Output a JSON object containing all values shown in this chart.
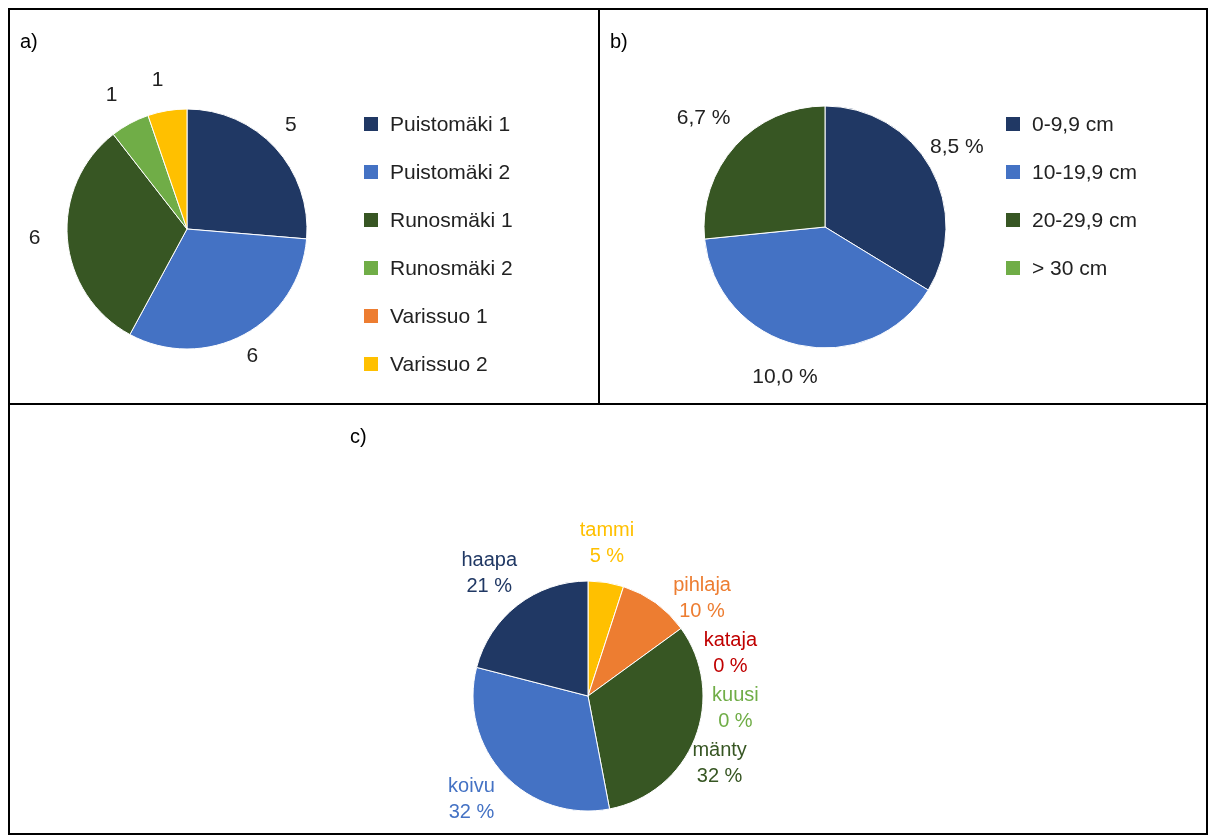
{
  "chart_data": [
    {
      "type": "pie",
      "title": "a)",
      "categories": [
        "Puistomäki 1",
        "Puistomäki 2",
        "Runosmäki 1",
        "Runosmäki 2",
        "Varissuo 1",
        "Varissuo 2"
      ],
      "values": [
        5,
        6,
        6,
        1,
        0,
        1
      ],
      "value_labels": [
        "5",
        "6",
        "6",
        "1",
        null,
        "1"
      ],
      "colors": [
        "#203864",
        "#4472c4",
        "#375623",
        "#70ad47",
        "#ed7d31",
        "#ffc000"
      ],
      "legend": "right"
    },
    {
      "type": "pie",
      "title": "b)",
      "categories": [
        "0-9,9 cm",
        "10-19,9 cm",
        "20-29,9 cm",
        "> 30 cm"
      ],
      "values": [
        8.5,
        10.0,
        6.7,
        0
      ],
      "value_labels": [
        "8,5 %",
        "10,0 %",
        "6,7 %",
        null
      ],
      "colors": [
        "#203864",
        "#4472c4",
        "#375623",
        "#70ad47"
      ],
      "legend": "right"
    },
    {
      "type": "pie",
      "title": "c)",
      "categories": [
        "tammi",
        "pihlaja",
        "kataja",
        "kuusi",
        "mänty",
        "koivu",
        "haapa"
      ],
      "values": [
        5,
        10,
        0,
        0,
        32,
        32,
        21
      ],
      "value_labels": [
        "5 %",
        "10 %",
        "0 %",
        "0 %",
        "32 %",
        "32 %",
        "21 %"
      ],
      "colors": [
        "#ffc000",
        "#ed7d31",
        "#c00000",
        "#70ad47",
        "#375623",
        "#4472c4",
        "#203864"
      ],
      "legend": false
    }
  ]
}
